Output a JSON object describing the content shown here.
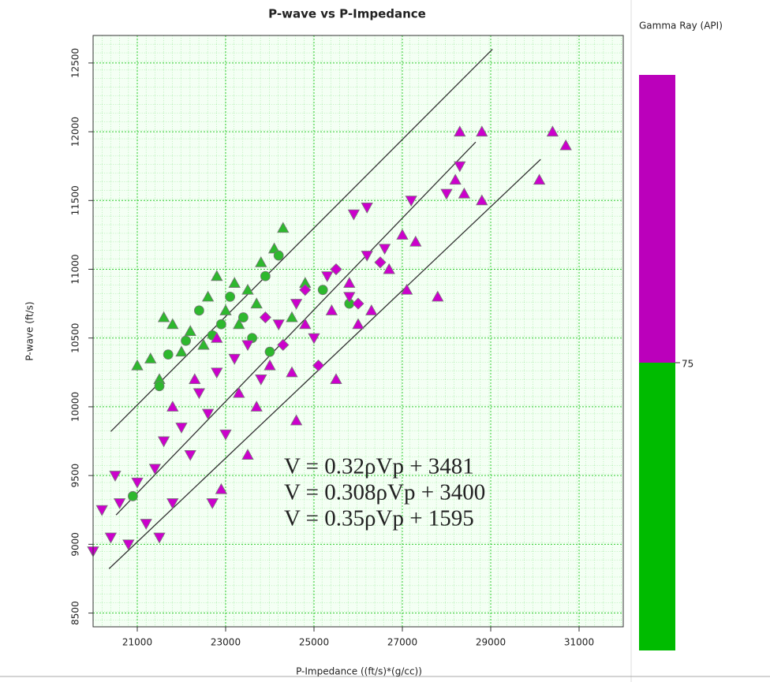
{
  "chart_data": {
    "type": "scatter",
    "title": "P-wave vs P-Impedance",
    "x_label": "P-Impedance ((ft/s)*(g/cc))",
    "y_label": "P-wave (ft/s)",
    "xlim": [
      20000,
      32000
    ],
    "ylim": [
      8400,
      12700
    ],
    "xticks": [
      21000,
      23000,
      25000,
      27000,
      29000,
      31000
    ],
    "yticks": [
      8500,
      9000,
      9500,
      10000,
      10500,
      11000,
      11500,
      12000,
      12500
    ],
    "grid": true,
    "grid_color": "#33cc33",
    "series": [
      {
        "color": "#2db82d",
        "marker": "triangle-up",
        "x": [
          21000,
          21300,
          21600,
          21800,
          22200,
          22600,
          22800,
          23000,
          23200,
          23500,
          23800,
          24100,
          24300,
          22500,
          23300,
          24800,
          21500,
          22000,
          23700,
          24500
        ],
        "values": [
          10300,
          10350,
          10650,
          10600,
          10550,
          10800,
          10950,
          10700,
          10900,
          10850,
          11050,
          11150,
          11300,
          10450,
          10600,
          10900,
          10200,
          10400,
          10750,
          10650
        ]
      },
      {
        "color": "#2db82d",
        "marker": "circle",
        "x": [
          21500,
          21700,
          22100,
          22400,
          22700,
          23100,
          23400,
          23900,
          24200,
          25200,
          25800,
          22900,
          23600,
          24000,
          20900
        ],
        "values": [
          10150,
          10380,
          10480,
          10700,
          10520,
          10800,
          10650,
          10950,
          11100,
          10850,
          10750,
          10600,
          10500,
          10400,
          9350
        ]
      },
      {
        "color": "#cc00cc",
        "marker": "triangle-down",
        "x": [
          20000,
          20200,
          20400,
          20600,
          20800,
          21000,
          21200,
          21400,
          21600,
          21800,
          22000,
          22200,
          22400,
          22600,
          22800,
          23000,
          23200,
          23500,
          23800,
          24200,
          24600,
          25000,
          25300,
          25800,
          26200,
          26600,
          26200,
          25900,
          27200,
          28300,
          28000,
          22700,
          21500,
          20500
        ],
        "values": [
          8950,
          9250,
          9050,
          9300,
          9000,
          9450,
          9150,
          9550,
          9750,
          9300,
          9850,
          9650,
          10100,
          9950,
          10250,
          9800,
          10350,
          10450,
          10200,
          10600,
          10750,
          10500,
          10950,
          10800,
          11100,
          11150,
          11450,
          11400,
          11500,
          11750,
          11550,
          9300,
          9050,
          9500
        ]
      },
      {
        "color": "#cc00cc",
        "marker": "triangle-up",
        "x": [
          21800,
          22300,
          22800,
          23300,
          23700,
          24000,
          24500,
          24800,
          25400,
          25800,
          26300,
          26700,
          27000,
          27300,
          27100,
          27800,
          26000,
          28200,
          28400,
          28800,
          28800,
          28300,
          30100,
          30400,
          30700,
          24600,
          25500,
          23500,
          22900
        ],
        "values": [
          10000,
          10200,
          10500,
          10100,
          10000,
          10300,
          10250,
          10600,
          10700,
          10900,
          10700,
          11000,
          11250,
          11200,
          10850,
          10800,
          10600,
          11650,
          11550,
          12000,
          11500,
          12000,
          11650,
          12000,
          11900,
          9900,
          10200,
          9650,
          9400
        ]
      },
      {
        "color": "#cc00cc",
        "marker": "diamond",
        "x": [
          24800,
          25500,
          26000,
          26500,
          24300,
          23900,
          25100
        ],
        "values": [
          10850,
          11000,
          10750,
          11050,
          10450,
          10650,
          10300
        ]
      }
    ],
    "lines": [
      {
        "color": "#333333",
        "x": [
          20400,
          29040
        ],
        "values": [
          9820,
          12600
        ]
      },
      {
        "color": "#333333",
        "x": [
          20520,
          28660
        ],
        "values": [
          9213,
          11925
        ]
      },
      {
        "color": "#333333",
        "x": [
          20360,
          30130
        ],
        "values": [
          8822,
          11799
        ]
      }
    ],
    "annotations": [
      {
        "text": "V = 0.32ρVp + 3481",
        "color": "#33dd33"
      },
      {
        "text": "V = 0.308ρVp + 3400",
        "color": "#111111"
      },
      {
        "text": "V = 0.35ρVp + 1595",
        "color": "#dd22dd"
      }
    ],
    "colorbar": {
      "title": "Gamma Ray (API)",
      "colors": [
        "#00bb00",
        "#bb00bb"
      ],
      "ticks": [
        75
      ]
    }
  }
}
